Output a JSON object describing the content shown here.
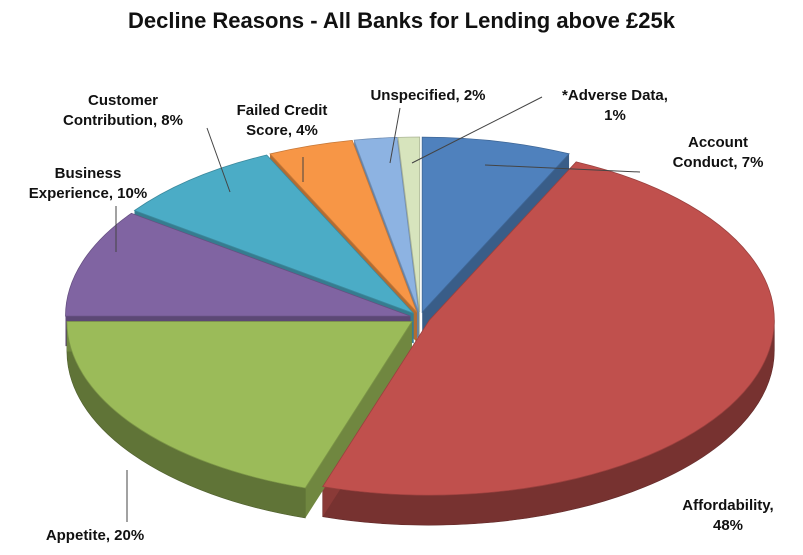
{
  "chart_data": {
    "type": "pie",
    "title": "Decline Reasons - All Banks for Lending above £25k",
    "style": "3d-exploded",
    "slices": [
      {
        "label": "Account Conduct",
        "value": 7,
        "color": "#4f81bd"
      },
      {
        "label": "Affordability",
        "value": 48,
        "color": "#c0504d"
      },
      {
        "label": "Appetite",
        "value": 20,
        "color": "#9bbb59"
      },
      {
        "label": "Business Experience",
        "value": 10,
        "color": "#8064a2"
      },
      {
        "label": "Customer Contribution",
        "value": 8,
        "color": "#4bacc6"
      },
      {
        "label": "Failed Credit Score",
        "value": 4,
        "color": "#f79646"
      },
      {
        "label": "Unspecified",
        "value": 2,
        "color": "#8db3e2"
      },
      {
        "label": "*Adverse Data",
        "value": 1,
        "color": "#d7e4bd"
      }
    ],
    "labels": [
      [
        "Account",
        "Conduct, 7%"
      ],
      [
        "Affordability,",
        "48%"
      ],
      [
        "Appetite, 20%"
      ],
      [
        "Business",
        "Experience, 10%"
      ],
      [
        "Customer",
        "Contribution, 8%"
      ],
      [
        "Failed Credit",
        "Score, 4%"
      ],
      [
        "Unspecified, 2%"
      ],
      [
        "*Adverse Data,",
        "1%"
      ]
    ]
  }
}
